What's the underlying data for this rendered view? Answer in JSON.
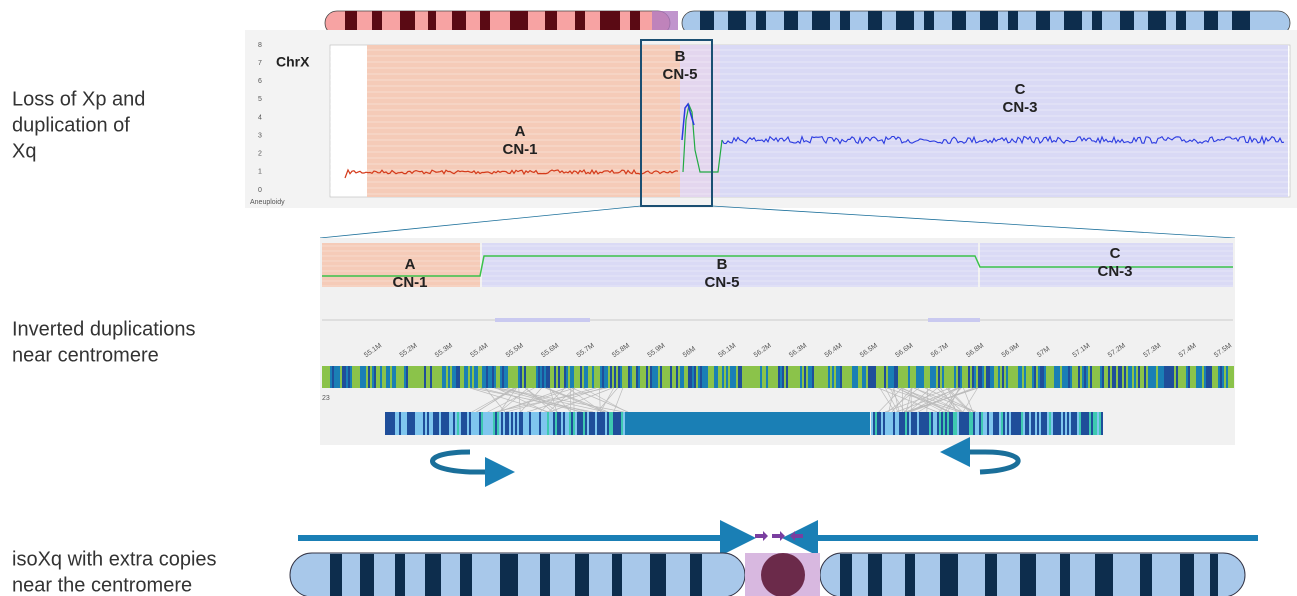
{
  "captions": [
    {
      "lines": [
        "Loss of Xp and",
        "duplication of",
        "Xq"
      ]
    },
    {
      "lines": [
        "Inverted duplications",
        "near centromere"
      ]
    },
    {
      "lines": [
        "isoXq with extra copies",
        "near the centromere"
      ]
    }
  ],
  "top_panel": {
    "track": "ChrX",
    "y_labels": [
      "0",
      "1",
      "2",
      "3",
      "4",
      "5",
      "6",
      "7",
      "8"
    ],
    "footer": "Aneuploidy",
    "regions": [
      {
        "name": "A",
        "cn": "CN-1"
      },
      {
        "name": "B",
        "cn": "CN-5"
      },
      {
        "name": "C",
        "cn": "CN-3"
      }
    ]
  },
  "zoom_panel": {
    "regions": [
      {
        "name": "A",
        "cn": "CN-1"
      },
      {
        "name": "B",
        "cn": "CN-5"
      },
      {
        "name": "C",
        "cn": "CN-3"
      }
    ],
    "ticks": [
      "55.1M",
      "55.2M",
      "55.3M",
      "55.4M",
      "55.5M",
      "55.6M",
      "55.7M",
      "55.8M",
      "55.9M",
      "56M",
      "56.1M",
      "56.2M",
      "56.3M",
      "56.4M",
      "56.5M",
      "56.6M",
      "56.7M",
      "56.8M",
      "56.9M",
      "57M",
      "57.1M",
      "57.2M",
      "57.3M",
      "57.4M",
      "57.5M"
    ],
    "row_label": "23"
  }
}
